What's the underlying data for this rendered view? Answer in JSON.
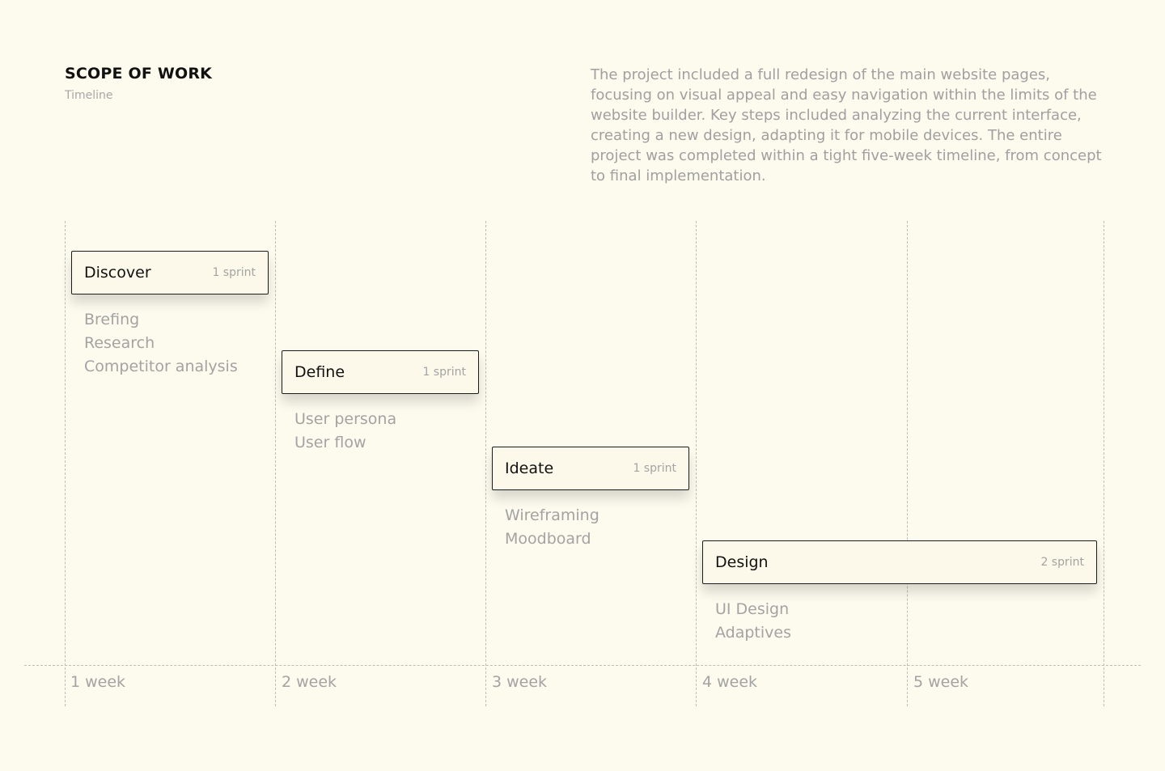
{
  "header": {
    "title": "SCOPE OF WORK",
    "subtitle": "Timeline"
  },
  "description": "The project included a full redesign of the main website pages, focusing on visual appeal and easy navigation within the limits of the website builder. Key steps included analyzing the current interface, creating a new design, adapting it for mobile devices. The entire project was completed within a tight five-week timeline, from concept to final implementation.",
  "weeks": [
    "1 week",
    "2 week",
    "3 week",
    "4 week",
    "5 week"
  ],
  "phases": [
    {
      "name": "Discover",
      "duration": "1 sprint",
      "start_week": 1,
      "weeks": 1,
      "tasks": [
        "Brefing",
        "Research",
        "Competitor analysis"
      ]
    },
    {
      "name": "Define",
      "duration": "1 sprint",
      "start_week": 2,
      "weeks": 1,
      "tasks": [
        "User persona",
        "User flow"
      ]
    },
    {
      "name": "Ideate",
      "duration": "1 sprint",
      "start_week": 3,
      "weeks": 1,
      "tasks": [
        "Wireframing",
        "Moodboard"
      ]
    },
    {
      "name": "Design",
      "duration": "2 sprint",
      "start_week": 4,
      "weeks": 2,
      "tasks": [
        "UI Design",
        "Adaptives"
      ]
    }
  ]
}
